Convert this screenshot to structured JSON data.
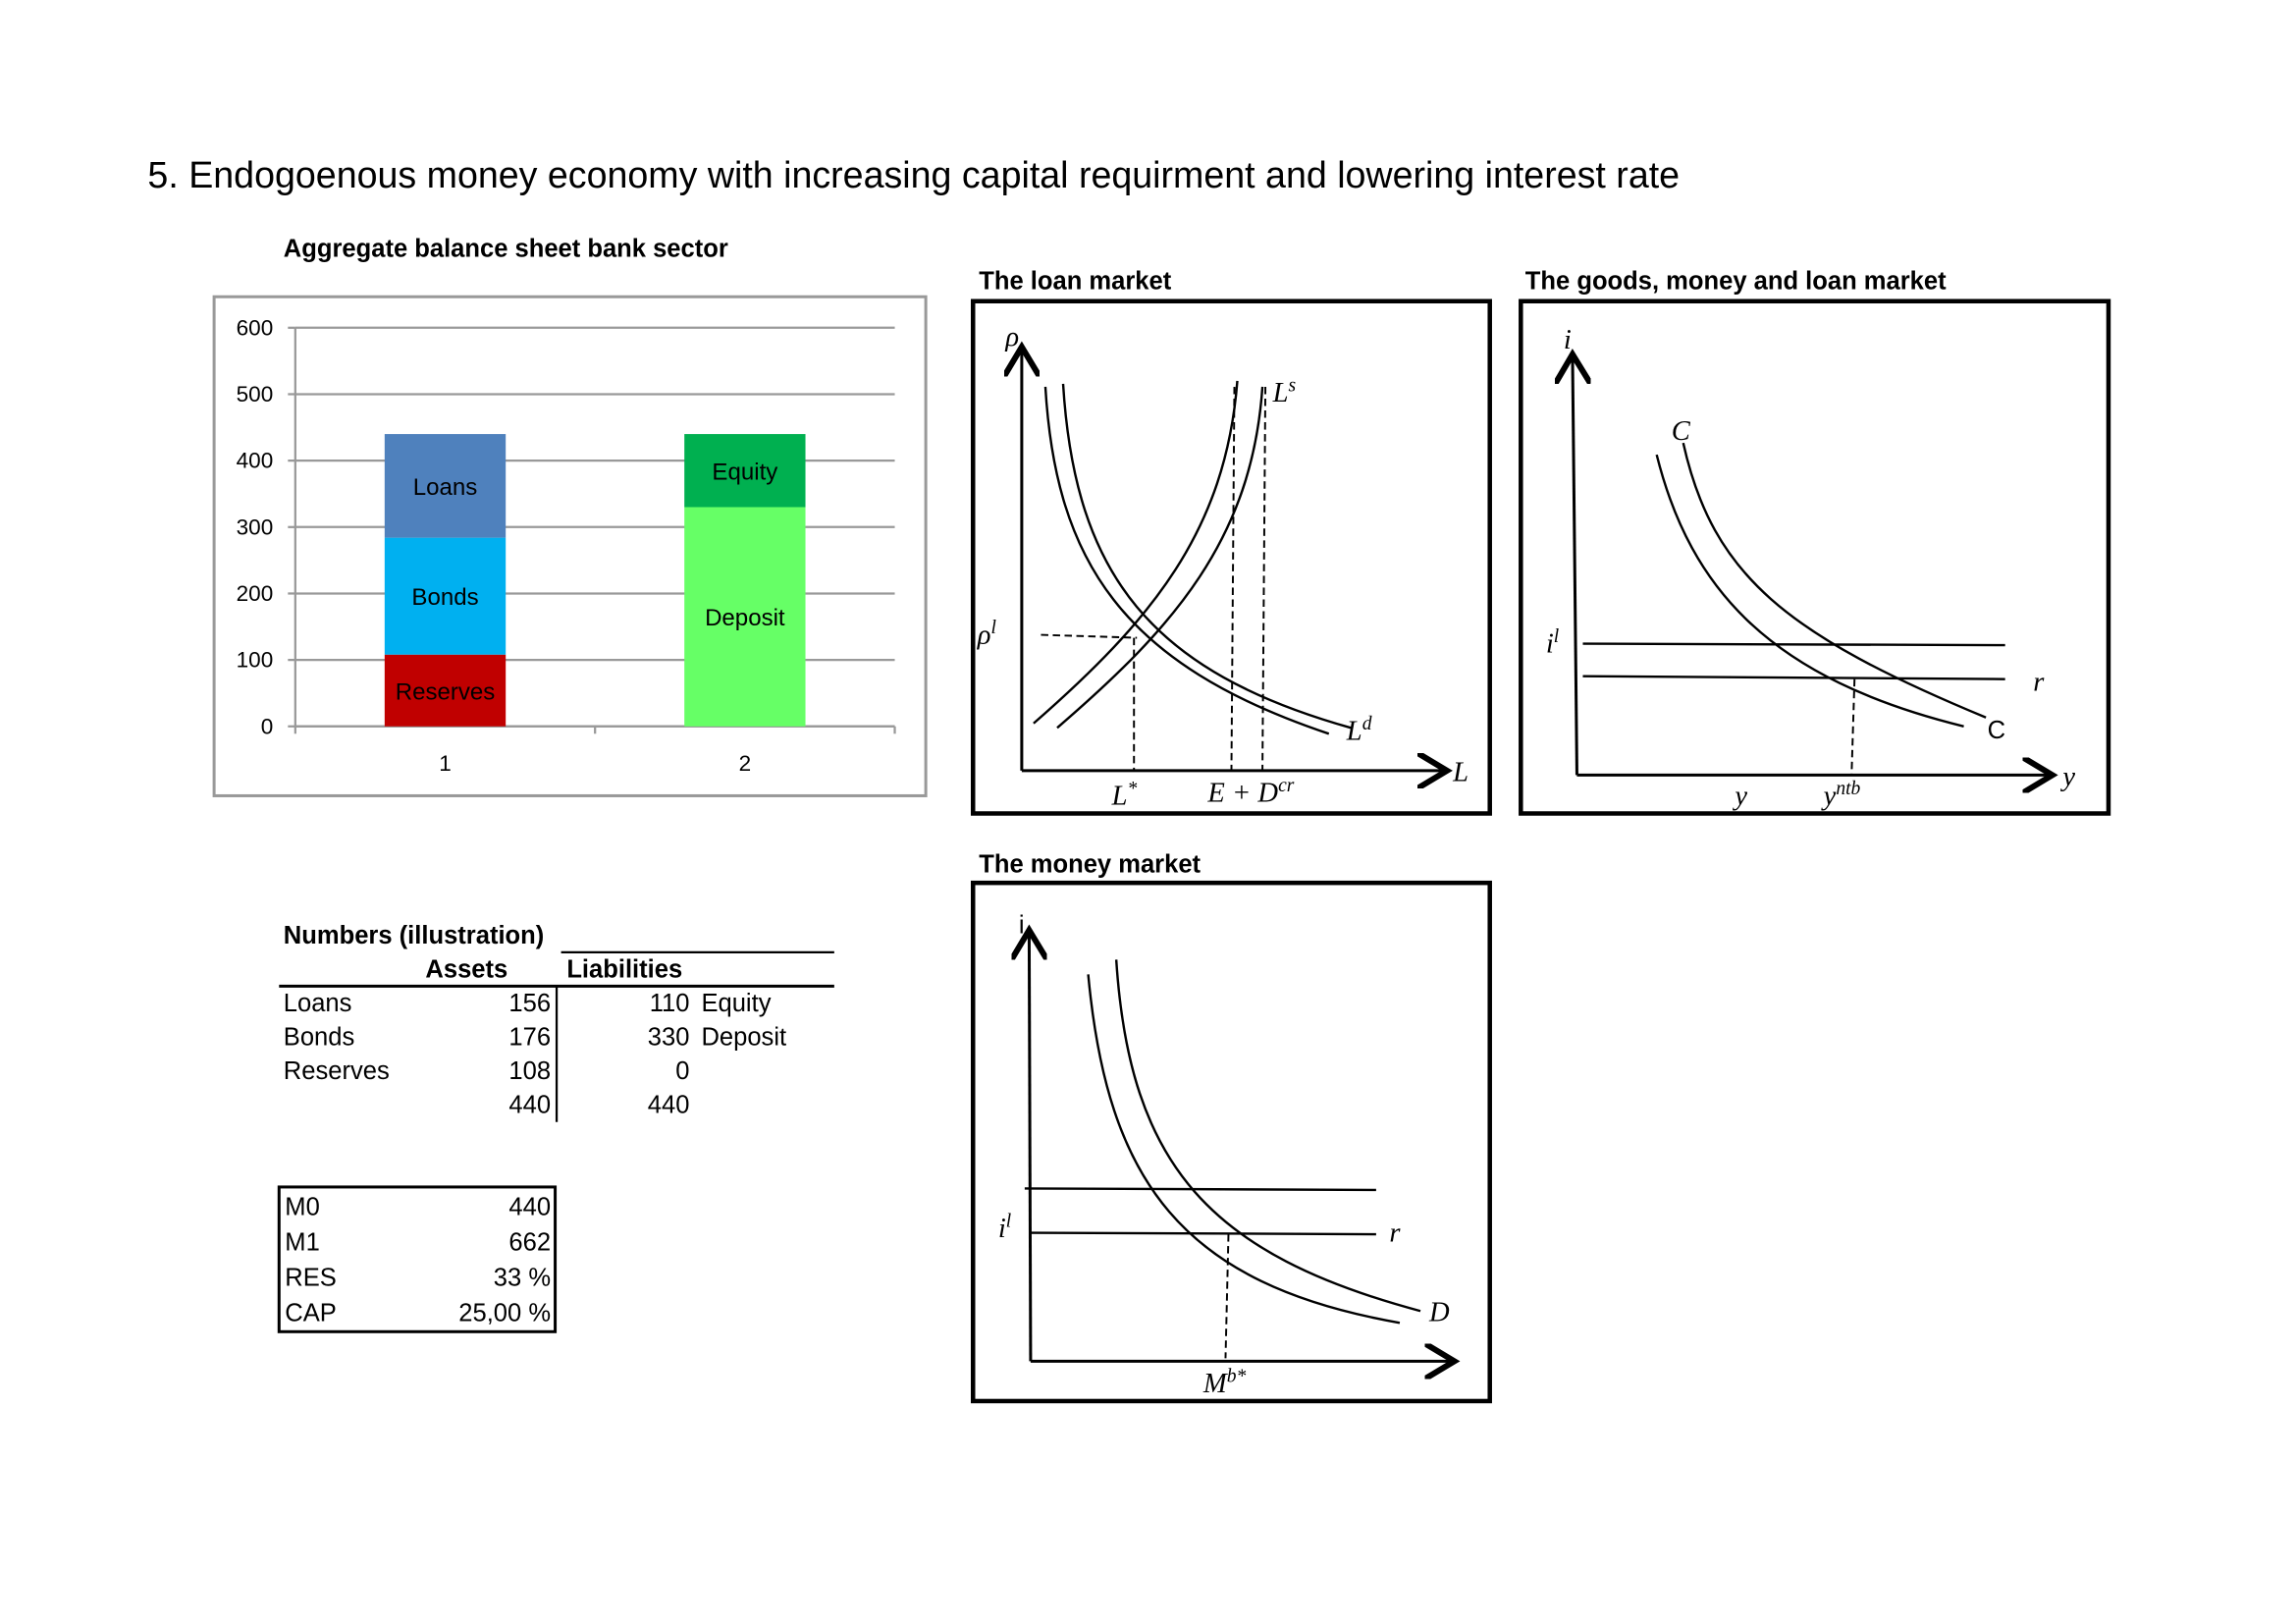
{
  "title": "5. Endogoenous money economy with increasing capital requirment and lowering interest rate",
  "chart_data": {
    "type": "stacked-bar",
    "title": "Aggregate balance sheet bank sector",
    "categories": [
      "1",
      "2"
    ],
    "series": [
      {
        "name": "Reserves",
        "color": "#c00000",
        "values": [
          108,
          null
        ]
      },
      {
        "name": "Bonds",
        "color": "#00b0f0",
        "values": [
          176,
          null
        ]
      },
      {
        "name": "Loans",
        "color": "#4f81bd",
        "values": [
          156,
          null
        ]
      },
      {
        "name": "Deposit",
        "color": "#66ff66",
        "values": [
          null,
          330
        ]
      },
      {
        "name": "Equity",
        "color": "#00b050",
        "values": [
          null,
          110
        ]
      }
    ],
    "ylim": [
      0,
      600
    ],
    "yticks": [
      0,
      100,
      200,
      300,
      400,
      500,
      600
    ],
    "grid": true
  },
  "diagrams": [
    {
      "title": "The loan market",
      "labels": [
        {
          "text": "ρ"
        },
        {
          "text": "L",
          "sup": "s"
        },
        {
          "text": "ρ",
          "sup": "l"
        },
        {
          "text": "L",
          "sup": "d"
        },
        {
          "text": "L",
          "sup": "*"
        },
        {
          "text": "E + D",
          "sup": "cr"
        },
        {
          "text": "L"
        }
      ]
    },
    {
      "title": "The goods, money and loan market",
      "labels": [
        {
          "text": "i"
        },
        {
          "text": "C"
        },
        {
          "text": "i",
          "sup": "l"
        },
        {
          "text": "r"
        },
        {
          "text": "C"
        },
        {
          "text": "y"
        },
        {
          "text": "y"
        },
        {
          "text": "y",
          "sup": "ntb"
        }
      ]
    },
    {
      "title": "The money market",
      "labels": [
        {
          "text": "i"
        },
        {
          "text": "i",
          "sup": "l"
        },
        {
          "text": "r"
        },
        {
          "text": "D"
        },
        {
          "text": "M",
          "sup": "b*"
        }
      ]
    }
  ],
  "numbers_table": {
    "title": "Numbers (illustration)",
    "columns": [
      "Assets",
      "Liabilities"
    ],
    "rows": [
      {
        "label": "Loans",
        "assets": 156,
        "liabilities": 110,
        "liability_label": "Equity"
      },
      {
        "label": "Bonds",
        "assets": 176,
        "liabilities": 330,
        "liability_label": "Deposit"
      },
      {
        "label": "Reserves",
        "assets": 108,
        "liabilities": 0
      },
      {
        "assets": 440,
        "liabilities": 440
      }
    ]
  },
  "money_table": {
    "rows": [
      [
        "M0",
        "440"
      ],
      [
        "M1",
        "662"
      ],
      [
        "RES",
        "33 %"
      ],
      [
        "CAP",
        "25,00 %"
      ]
    ]
  }
}
